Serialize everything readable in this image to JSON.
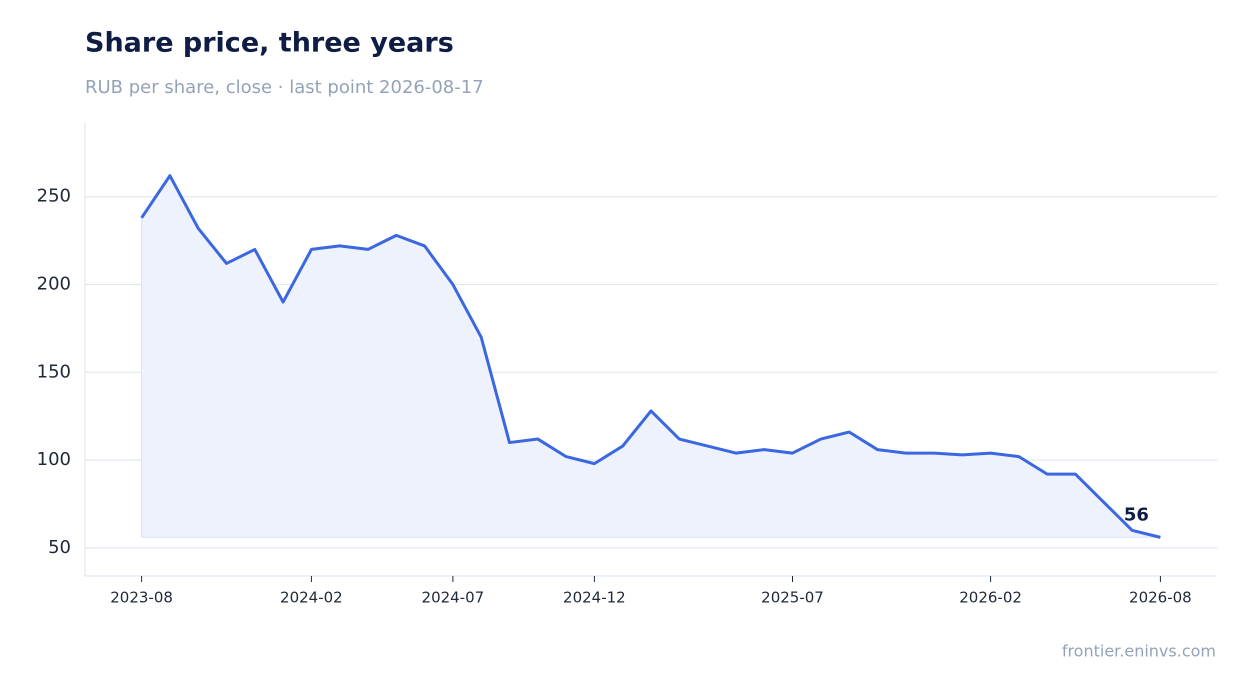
{
  "chart_data": {
    "type": "line",
    "title": "Share price, three years",
    "subtitle": "RUB per share, close · last point 2026-08-17",
    "source": "frontier.eninvs.com",
    "x": [
      "2023-08",
      "2023-09",
      "2023-10",
      "2023-11",
      "2023-12",
      "2024-01",
      "2024-02",
      "2024-03",
      "2024-04",
      "2024-05",
      "2024-06",
      "2024-07",
      "2024-08",
      "2024-09",
      "2024-10",
      "2024-11",
      "2024-12",
      "2025-01",
      "2025-02",
      "2025-03",
      "2025-04",
      "2025-05",
      "2025-06",
      "2025-07",
      "2025-08",
      "2025-09",
      "2025-10",
      "2025-11",
      "2025-12",
      "2026-01",
      "2026-02",
      "2026-03",
      "2026-04",
      "2026-05",
      "2026-06",
      "2026-07",
      "2026-08"
    ],
    "series": [
      {
        "name": "Close",
        "color": "#3b68e0",
        "values": [
          238,
          262,
          232,
          212,
          220,
          190,
          220,
          222,
          220,
          228,
          222,
          200,
          170,
          110,
          112,
          102,
          98,
          108,
          128,
          112,
          108,
          104,
          106,
          104,
          112,
          116,
          106,
          104,
          104,
          103,
          104,
          102,
          92,
          92,
          76,
          60,
          56
        ]
      }
    ],
    "fill_color": "#eef2fc",
    "xlim": [
      "2023-06",
      "2026-10"
    ],
    "xticks": [
      "2023-08",
      "2024-02",
      "2024-07",
      "2024-12",
      "2025-07",
      "2026-02",
      "2026-08"
    ],
    "ylim": [
      34,
      292
    ],
    "yticks": [
      50,
      100,
      150,
      200,
      250
    ],
    "grid": true
  }
}
